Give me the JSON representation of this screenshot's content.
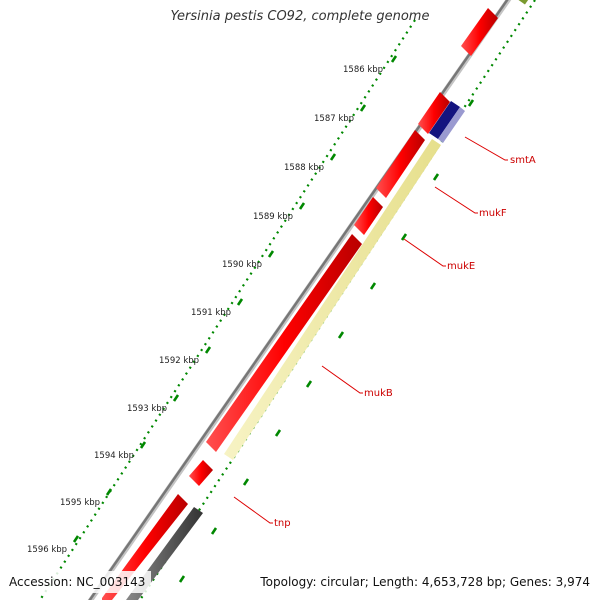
{
  "title": "Yersinia pestis CO92, complete genome",
  "accession_text": "Accession: NC_003143",
  "summary_text": "Topology: circular; Length: 4,653,728 bp; Genes: 3,974",
  "colors": {
    "forward_gene": "#ff0000",
    "reverse_gene": "#ff0000",
    "highlight_gene": "#f0eba0",
    "dark_gene": "#0a0a7a",
    "gray_gene": "#555555",
    "backbone": "#888888",
    "tick_dots": "#008800",
    "label_line": "#dd0000"
  },
  "ticks": [
    {
      "label": "1586 kbp"
    },
    {
      "label": "1587 kbp"
    },
    {
      "label": "1588 kbp"
    },
    {
      "label": "1589 kbp"
    },
    {
      "label": "1590 kbp"
    },
    {
      "label": "1591 kbp"
    },
    {
      "label": "1592 kbp"
    },
    {
      "label": "1593 kbp"
    },
    {
      "label": "1594 kbp"
    },
    {
      "label": "1595 kbp"
    },
    {
      "label": "1596 kbp"
    }
  ],
  "gene_labels": [
    {
      "name": "smtA"
    },
    {
      "name": "mukF"
    },
    {
      "name": "mukE"
    },
    {
      "name": "mukB"
    },
    {
      "name": "tnp"
    }
  ]
}
